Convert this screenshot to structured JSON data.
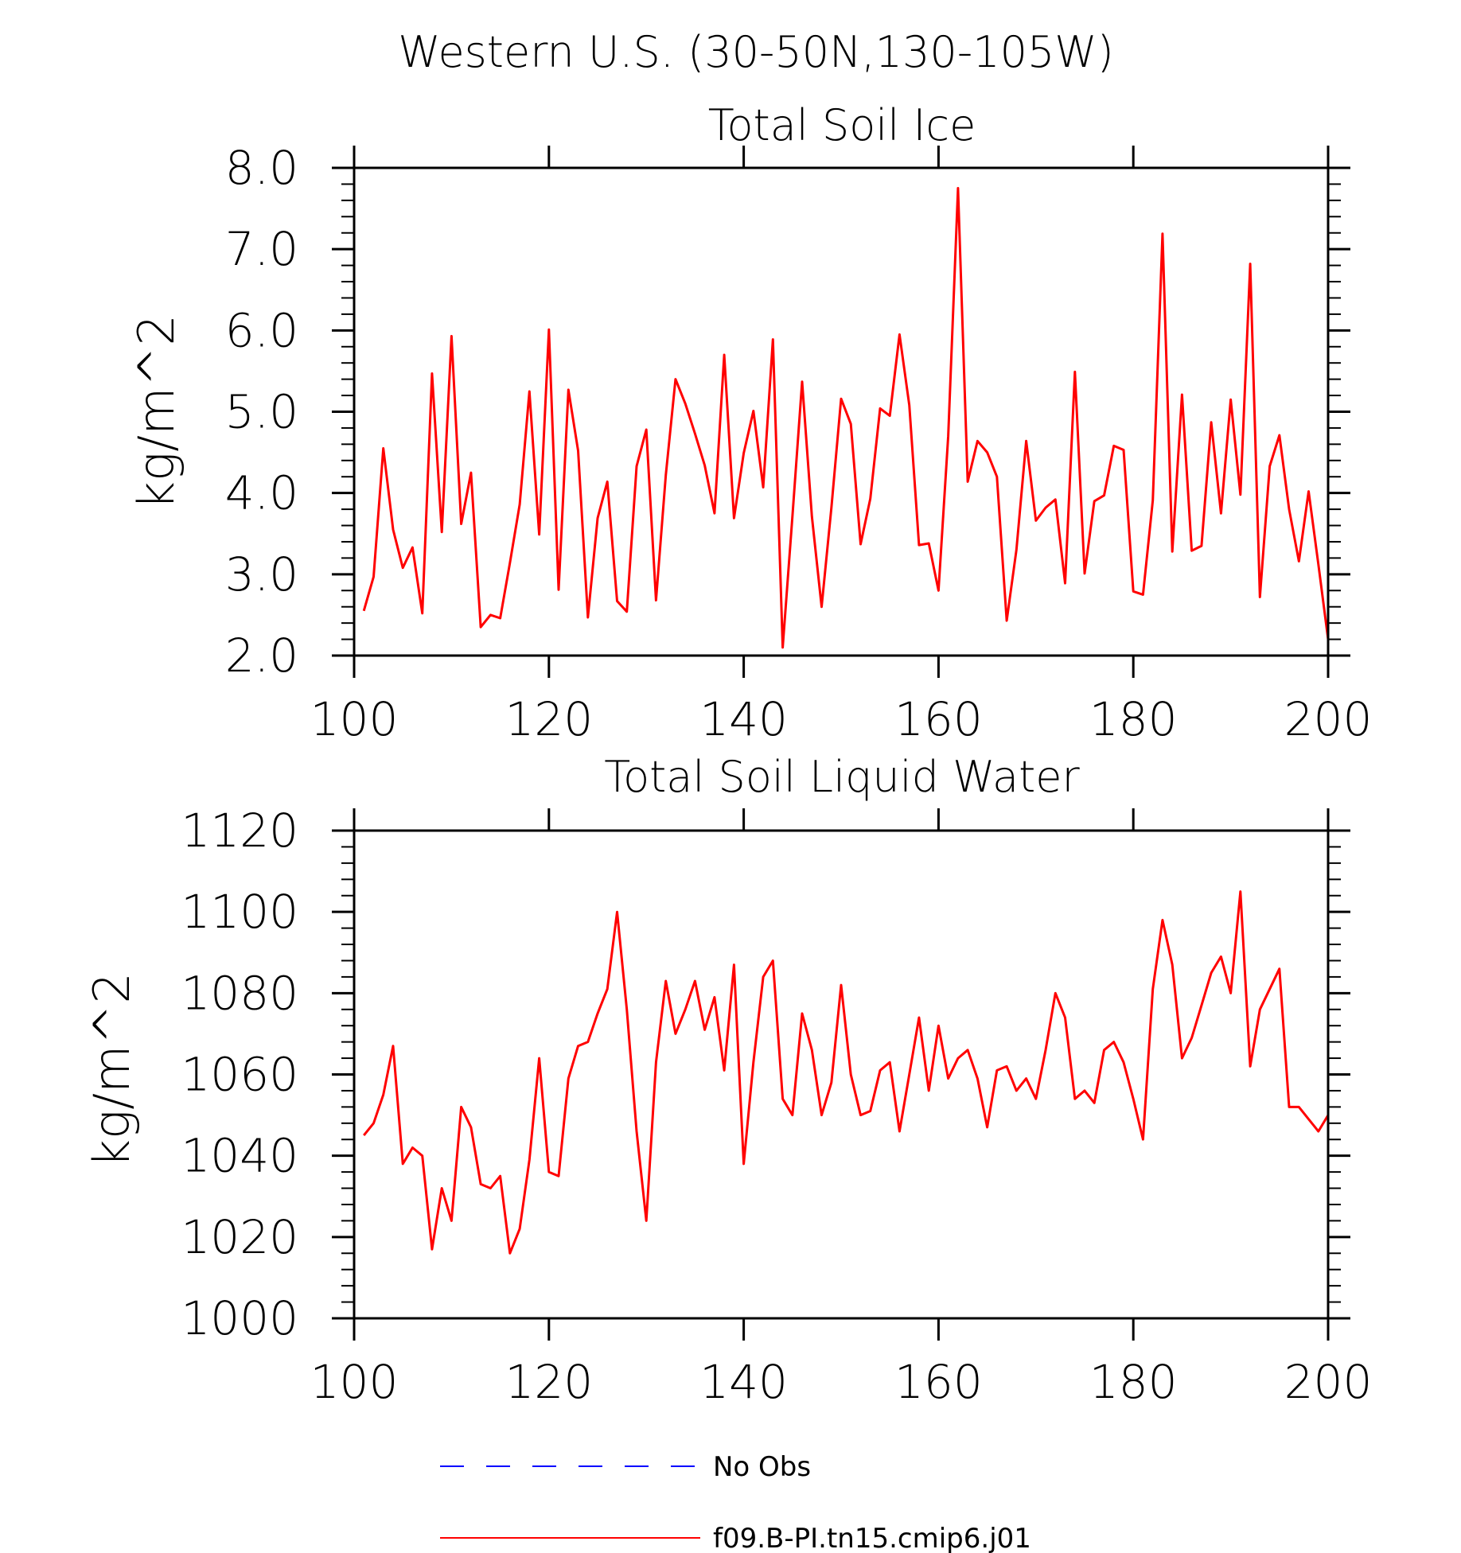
{
  "figure_title": "Western U.S. (30-50N,130-105W)",
  "chart_data": [
    {
      "type": "line",
      "title": "Total Soil Ice",
      "xlabel": "",
      "ylabel": "kg/m^2",
      "xlim": [
        100,
        200
      ],
      "ylim": [
        2.0,
        8.0
      ],
      "xticks": [
        100,
        120,
        140,
        160,
        180,
        200
      ],
      "xtick_labels": [
        "100",
        "120",
        "140",
        "160",
        "180",
        "200"
      ],
      "yticks": [
        2.0,
        3.0,
        4.0,
        5.0,
        6.0,
        7.0,
        8.0
      ],
      "ytick_labels": [
        "2.0",
        "3.0",
        "4.0",
        "5.0",
        "6.0",
        "7.0",
        "8.0"
      ],
      "grid": false,
      "series": [
        {
          "name": "f09.B-PI.tn15.cmip6.j01",
          "color": "#ff0000",
          "x": [
            101,
            102,
            103,
            104,
            105,
            106,
            107,
            108,
            109,
            110,
            111,
            112,
            113,
            114,
            115,
            116,
            117,
            118,
            119,
            120,
            121,
            122,
            123,
            124,
            125,
            126,
            127,
            128,
            129,
            130,
            131,
            132,
            133,
            134,
            135,
            136,
            137,
            138,
            139,
            140,
            141,
            142,
            143,
            144,
            145,
            146,
            147,
            148,
            149,
            150,
            151,
            152,
            153,
            154,
            155,
            156,
            157,
            158,
            159,
            160,
            161,
            162,
            163,
            164,
            165,
            166,
            167,
            168,
            169,
            170,
            171,
            172,
            173,
            174,
            175,
            176,
            177,
            178,
            179,
            180,
            181,
            182,
            183,
            184,
            185,
            186,
            187,
            188,
            189,
            190,
            191,
            192,
            193,
            194,
            195,
            196,
            197,
            198,
            199,
            200
          ],
          "values": [
            2.55,
            2.97,
            4.55,
            3.55,
            3.08,
            3.33,
            2.52,
            5.47,
            3.52,
            5.93,
            3.62,
            4.25,
            2.35,
            2.5,
            2.46,
            3.14,
            3.86,
            5.25,
            3.49,
            6.01,
            2.81,
            5.27,
            4.52,
            2.47,
            3.69,
            4.14,
            2.67,
            2.54,
            4.33,
            4.78,
            2.68,
            4.22,
            5.4,
            5.1,
            4.73,
            4.34,
            3.75,
            5.7,
            3.69,
            4.49,
            5.01,
            4.07,
            5.89,
            2.1,
            3.71,
            5.37,
            3.71,
            2.6,
            3.82,
            5.16,
            4.85,
            3.37,
            3.93,
            5.04,
            4.95,
            5.95,
            5.08,
            3.36,
            3.38,
            2.8,
            4.7,
            7.75,
            4.14,
            4.64,
            4.5,
            4.2,
            2.43,
            3.3,
            4.64,
            3.66,
            3.82,
            3.92,
            2.89,
            5.49,
            3.01,
            3.9,
            3.97,
            4.58,
            4.53,
            2.79,
            2.75,
            3.91,
            7.19,
            3.28,
            5.21,
            3.29,
            3.35,
            4.87,
            3.75,
            5.15,
            3.98,
            6.82,
            2.72,
            4.33,
            4.71,
            3.8,
            3.16,
            4.02,
            3.12,
            2.2
          ]
        }
      ]
    },
    {
      "type": "line",
      "title": "Total Soil Liquid Water",
      "xlabel": "",
      "ylabel": "kg/m^2",
      "xlim": [
        100,
        200
      ],
      "ylim": [
        1000,
        1120
      ],
      "xticks": [
        100,
        120,
        140,
        160,
        180,
        200
      ],
      "xtick_labels": [
        "100",
        "120",
        "140",
        "160",
        "180",
        "200"
      ],
      "yticks": [
        1000,
        1020,
        1040,
        1060,
        1080,
        1100,
        1120
      ],
      "ytick_labels": [
        "1000",
        "1020",
        "1040",
        "1060",
        "1080",
        "1100",
        "1120"
      ],
      "grid": false,
      "series": [
        {
          "name": "f09.B-PI.tn15.cmip6.j01",
          "color": "#ff0000",
          "x": [
            101,
            102,
            103,
            104,
            105,
            106,
            107,
            108,
            109,
            110,
            111,
            112,
            113,
            114,
            115,
            116,
            117,
            118,
            119,
            120,
            121,
            122,
            123,
            124,
            125,
            126,
            127,
            128,
            129,
            130,
            131,
            132,
            133,
            134,
            135,
            136,
            137,
            138,
            139,
            140,
            141,
            142,
            143,
            144,
            145,
            146,
            147,
            148,
            149,
            150,
            151,
            152,
            153,
            154,
            155,
            156,
            157,
            158,
            159,
            160,
            161,
            162,
            163,
            164,
            165,
            166,
            167,
            168,
            169,
            170,
            171,
            172,
            173,
            174,
            175,
            176,
            177,
            178,
            179,
            180,
            181,
            182,
            183,
            184,
            185,
            186,
            187,
            188,
            189,
            190,
            191,
            192,
            193,
            194,
            195,
            196,
            197,
            198,
            199,
            200
          ],
          "values": [
            1045,
            1048,
            1055,
            1067,
            1038,
            1042,
            1040,
            1017,
            1032,
            1024,
            1052,
            1047,
            1033,
            1032,
            1035,
            1016,
            1022,
            1039,
            1064,
            1036,
            1035,
            1059,
            1067,
            1068,
            1075,
            1081,
            1100,
            1076,
            1046,
            1024,
            1063,
            1083,
            1070,
            1076,
            1083,
            1071,
            1079,
            1061,
            1087,
            1038,
            1063,
            1084,
            1088,
            1054,
            1050,
            1075,
            1066,
            1050,
            1058,
            1082,
            1060,
            1050,
            1051,
            1061,
            1063,
            1046,
            1060,
            1074,
            1056,
            1072,
            1059,
            1064,
            1066,
            1059,
            1047,
            1061,
            1062,
            1056,
            1059,
            1054,
            1066,
            1080,
            1074,
            1054,
            1056,
            1053,
            1066,
            1068,
            1063,
            1054,
            1044,
            1081,
            1098,
            1087,
            1064,
            1069,
            1077,
            1085,
            1089,
            1080,
            1105,
            1062,
            1076,
            1081,
            1086,
            1052,
            1052,
            1049,
            1046,
            1050
          ]
        }
      ]
    }
  ],
  "legend": {
    "placement": "bottom-center",
    "entries": [
      {
        "label": "No Obs",
        "color": "#0000ff",
        "style": "dashed"
      },
      {
        "label": "f09.B-PI.tn15.cmip6.j01",
        "color": "#ff0000",
        "style": "solid"
      }
    ]
  }
}
